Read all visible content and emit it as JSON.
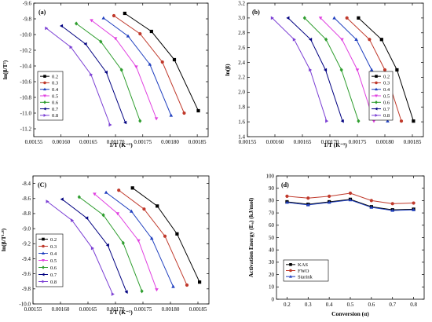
{
  "figure": {
    "background": "#ffffff"
  },
  "chart_data": [
    {
      "id": "a",
      "panel_label": "(a)",
      "type": "line",
      "xlabel": "1/T (K⁻¹)",
      "ylabel": "ln(β/T²)",
      "xlim": [
        0.00155,
        0.00187
      ],
      "ylim": [
        -11.3,
        -9.6
      ],
      "xticks": [
        0.00155,
        0.0016,
        0.00165,
        0.0017,
        0.00175,
        0.0018,
        0.00185
      ],
      "xtick_labels": [
        "0.00155",
        "0.00160",
        "0.00165",
        "0.00170",
        "0.00175",
        "0.00180",
        "0.00185"
      ],
      "yticks": [
        -11.2,
        -11.0,
        -10.8,
        -10.6,
        -10.4,
        -10.2,
        -10.0,
        -9.8,
        -9.6
      ],
      "ytick_labels": [
        "-11.2",
        "-11.0",
        "-10.8",
        "-10.6",
        "-10.4",
        "-10.2",
        "-10.0",
        "-9.8",
        "-9.6"
      ],
      "legend_position": "bottom-left",
      "series": [
        {
          "name": "0.2",
          "color": "#000000",
          "marker": "square",
          "x": [
            0.001717,
            0.001766,
            0.001808,
            0.001852
          ],
          "y": [
            -9.73,
            -9.96,
            -10.32,
            -10.97
          ]
        },
        {
          "name": "0.3",
          "color": "#c0392b",
          "marker": "circle",
          "x": [
            0.001697,
            0.001745,
            0.001786,
            0.001826
          ],
          "y": [
            -9.76,
            -9.99,
            -10.35,
            -11.0
          ]
        },
        {
          "name": "0.4",
          "color": "#1f3fbf",
          "marker": "triangle-up",
          "x": [
            0.001678,
            0.001723,
            0.001763,
            0.001802
          ],
          "y": [
            -9.79,
            -10.02,
            -10.38,
            -11.03
          ]
        },
        {
          "name": "0.5",
          "color": "#e040e0",
          "marker": "triangle-down",
          "x": [
            0.001656,
            0.0017,
            0.001738,
            0.001775
          ],
          "y": [
            -9.82,
            -10.05,
            -10.41,
            -11.07
          ]
        },
        {
          "name": "0.6",
          "color": "#2e9d2e",
          "marker": "diamond",
          "x": [
            0.001628,
            0.001673,
            0.001711,
            0.001745
          ],
          "y": [
            -9.86,
            -10.09,
            -10.45,
            -11.1
          ]
        },
        {
          "name": "0.7",
          "color": "#000080",
          "marker": "triangle-left",
          "x": [
            0.001601,
            0.001645,
            0.001683,
            0.001718
          ],
          "y": [
            -9.89,
            -10.12,
            -10.48,
            -11.12
          ]
        },
        {
          "name": "0.8",
          "color": "#7b3fd4",
          "marker": "triangle-right",
          "x": [
            0.001573,
            0.001618,
            0.001655,
            0.00169
          ],
          "y": [
            -9.92,
            -10.16,
            -10.51,
            -11.15
          ]
        }
      ]
    },
    {
      "id": "b",
      "panel_label": "(b)",
      "type": "line",
      "xlabel": "1/T (K⁻¹)",
      "ylabel": "ln(β)",
      "xlim": [
        0.00155,
        0.00187
      ],
      "ylim": [
        1.4,
        3.2
      ],
      "xticks": [
        0.00155,
        0.0016,
        0.00165,
        0.0017,
        0.00175,
        0.0018,
        0.00185
      ],
      "xtick_labels": [
        "0.00155",
        "0.00160",
        "0.00165",
        "0.00170",
        "0.00175",
        "0.00180",
        "0.00185"
      ],
      "yticks": [
        1.4,
        1.6,
        1.8,
        2.0,
        2.2,
        2.4,
        2.6,
        2.8,
        3.0,
        3.2
      ],
      "ytick_labels": [
        "1.4",
        "1.6",
        "1.8",
        "2.0",
        "2.2",
        "2.4",
        "2.6",
        "2.8",
        "3.0",
        "3.2"
      ],
      "legend_position": "top-right",
      "series": [
        {
          "name": "0.2",
          "color": "#000000",
          "marker": "square",
          "x": [
            0.001752,
            0.001794,
            0.001822,
            0.001852
          ],
          "y": [
            3.0,
            2.71,
            2.3,
            1.61
          ]
        },
        {
          "name": "0.3",
          "color": "#c0392b",
          "marker": "circle",
          "x": [
            0.001731,
            0.001772,
            0.0018,
            0.00183
          ],
          "y": [
            3.0,
            2.71,
            2.3,
            1.61
          ]
        },
        {
          "name": "0.4",
          "color": "#1f3fbf",
          "marker": "triangle-up",
          "x": [
            0.001708,
            0.001748,
            0.001776,
            0.001805
          ],
          "y": [
            3.0,
            2.71,
            2.3,
            1.61
          ]
        },
        {
          "name": "0.5",
          "color": "#e040e0",
          "marker": "triangle-down",
          "x": [
            0.001683,
            0.001722,
            0.00175,
            0.00178
          ],
          "y": [
            3.0,
            2.71,
            2.3,
            1.61
          ]
        },
        {
          "name": "0.6",
          "color": "#2e9d2e",
          "marker": "diamond",
          "x": [
            0.001654,
            0.001693,
            0.001721,
            0.001752
          ],
          "y": [
            3.0,
            2.71,
            2.3,
            1.61
          ]
        },
        {
          "name": "0.7",
          "color": "#000080",
          "marker": "triangle-left",
          "x": [
            0.001624,
            0.001665,
            0.001692,
            0.001723
          ],
          "y": [
            3.0,
            2.71,
            2.3,
            1.61
          ]
        },
        {
          "name": "0.8",
          "color": "#7b3fd4",
          "marker": "triangle-right",
          "x": [
            0.001595,
            0.001635,
            0.001664,
            0.001694
          ],
          "y": [
            3.0,
            2.71,
            2.3,
            1.61
          ]
        }
      ]
    },
    {
      "id": "c",
      "panel_label": "(C)",
      "type": "line",
      "xlabel": "1/T (K⁻¹)",
      "ylabel": "ln(β/T¹·⁸)",
      "xlim": [
        0.00155,
        0.00187
      ],
      "ylim": [
        -10.0,
        -8.3
      ],
      "xticks": [
        0.00155,
        0.0016,
        0.00165,
        0.0017,
        0.00175,
        0.0018,
        0.00185
      ],
      "xtick_labels": [
        "0.00155",
        "0.00160",
        "0.00165",
        "0.00170",
        "0.00175",
        "0.00180",
        "0.00185"
      ],
      "yticks": [
        -10.0,
        -9.8,
        -9.6,
        -9.4,
        -9.2,
        -9.0,
        -8.8,
        -8.6,
        -8.4
      ],
      "ytick_labels": [
        "-10.0",
        "-9.8",
        "-9.6",
        "-9.4",
        "-9.2",
        "-9.0",
        "-8.8",
        "-8.6",
        "-8.4"
      ],
      "legend_position": "bottom-left",
      "series": [
        {
          "name": "0.2",
          "color": "#000000",
          "marker": "square",
          "x": [
            0.001731,
            0.001776,
            0.001812,
            0.001853
          ],
          "y": [
            -8.46,
            -8.7,
            -9.07,
            -9.71
          ]
        },
        {
          "name": "0.3",
          "color": "#c0392b",
          "marker": "circle",
          "x": [
            0.001706,
            0.001752,
            0.00179,
            0.00183
          ],
          "y": [
            -8.49,
            -8.74,
            -9.1,
            -9.75
          ]
        },
        {
          "name": "0.4",
          "color": "#1f3fbf",
          "marker": "triangle-up",
          "x": [
            0.001683,
            0.001729,
            0.001766,
            0.001805
          ],
          "y": [
            -8.52,
            -8.77,
            -9.13,
            -9.77
          ]
        },
        {
          "name": "0.5",
          "color": "#e040e0",
          "marker": "triangle-down",
          "x": [
            0.001662,
            0.001704,
            0.001742,
            0.001775
          ],
          "y": [
            -8.54,
            -8.8,
            -9.16,
            -9.81
          ]
        },
        {
          "name": "0.6",
          "color": "#2e9d2e",
          "marker": "diamond",
          "x": [
            0.001634,
            0.001678,
            0.001714,
            0.001748
          ],
          "y": [
            -8.58,
            -8.82,
            -9.19,
            -9.83
          ]
        },
        {
          "name": "0.7",
          "color": "#000080",
          "marker": "triangle-left",
          "x": [
            0.001603,
            0.001648,
            0.001686,
            0.00172
          ],
          "y": [
            -8.61,
            -8.86,
            -9.22,
            -9.84
          ]
        },
        {
          "name": "0.8",
          "color": "#7b3fd4",
          "marker": "triangle-right",
          "x": [
            0.001576,
            0.001621,
            0.001658,
            0.001695
          ],
          "y": [
            -8.64,
            -8.89,
            -9.26,
            -9.87
          ]
        }
      ]
    },
    {
      "id": "d",
      "panel_label": "(d)",
      "type": "line",
      "xlabel": "Conversion (α)",
      "ylabel": "Activation Energy (Eₐ) (kJ/mol)",
      "xlim": [
        0.15,
        0.85
      ],
      "ylim": [
        0,
        100
      ],
      "xticks": [
        0.2,
        0.3,
        0.4,
        0.5,
        0.6,
        0.7,
        0.8
      ],
      "xtick_labels": [
        "0.2",
        "0.3",
        "0.4",
        "0.5",
        "0.6",
        "0.7",
        "0.8"
      ],
      "yticks": [
        0,
        10,
        20,
        30,
        40,
        50,
        60,
        70,
        80,
        90,
        100
      ],
      "ytick_labels": [
        "0",
        "10",
        "20",
        "30",
        "40",
        "50",
        "60",
        "70",
        "80",
        "90",
        "100"
      ],
      "legend_position": "bottom-left",
      "series": [
        {
          "name": "KAS",
          "color": "#000000",
          "marker": "square",
          "x": [
            0.2,
            0.3,
            0.4,
            0.5,
            0.6,
            0.7,
            0.8
          ],
          "y": [
            79.0,
            77.0,
            79.0,
            81.0,
            75.0,
            72.5,
            73.0
          ]
        },
        {
          "name": "FWO",
          "color": "#c0392b",
          "marker": "circle",
          "x": [
            0.2,
            0.3,
            0.4,
            0.5,
            0.6,
            0.7,
            0.8
          ],
          "y": [
            83.5,
            82.0,
            83.5,
            86.0,
            80.0,
            77.5,
            78.0
          ]
        },
        {
          "name": "Starink",
          "color": "#1f3fbf",
          "marker": "triangle-up",
          "x": [
            0.2,
            0.3,
            0.4,
            0.5,
            0.6,
            0.7,
            0.8
          ],
          "y": [
            78.5,
            76.5,
            78.5,
            80.5,
            74.5,
            72.0,
            72.5
          ]
        }
      ]
    }
  ]
}
